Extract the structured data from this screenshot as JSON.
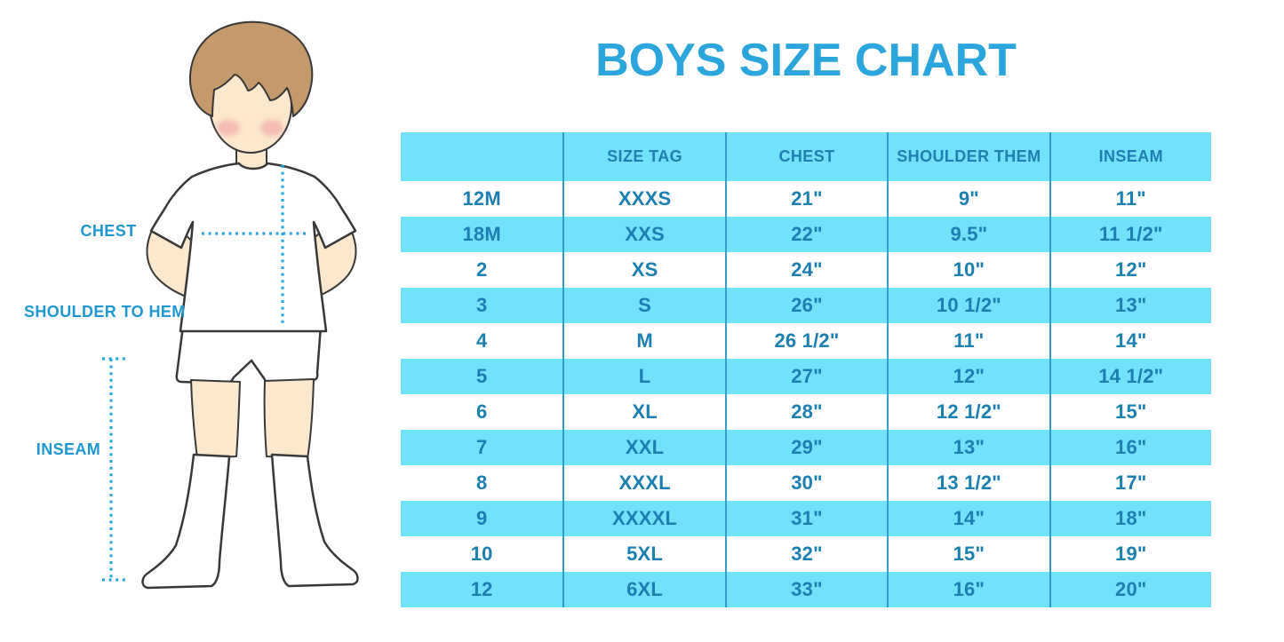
{
  "title": "BOYS SIZE CHART",
  "illustration": {
    "labels": {
      "chest": "CHEST",
      "shoulder_to_hem": "SHOULDER TO HEM",
      "inseam": "INSEAM"
    }
  },
  "colors": {
    "title_blue": "#2BA6DC",
    "band_blue": "#72E2FA",
    "table_text_blue": "#1C7FB2",
    "label_blue": "#1E97D2",
    "divider_blue": "#2E9DCB",
    "dotted_line_blue": "#29A8E0",
    "hair_brown": "#C49A6C",
    "skin": "#FBE8CD"
  },
  "chart_data": {
    "type": "table",
    "title": "BOYS SIZE CHART",
    "columns": [
      "",
      "SIZE TAG",
      "CHEST",
      "SHOULDER THEM",
      "INSEAM"
    ],
    "rows": [
      [
        "12M",
        "XXXS",
        "21\"",
        "9\"",
        "11\""
      ],
      [
        "18M",
        "XXS",
        "22\"",
        "9.5\"",
        "11 1/2\""
      ],
      [
        "2",
        "XS",
        "24\"",
        "10\"",
        "12\""
      ],
      [
        "3",
        "S",
        "26\"",
        "10 1/2\"",
        "13\""
      ],
      [
        "4",
        "M",
        "26 1/2\"",
        "11\"",
        "14\""
      ],
      [
        "5",
        "L",
        "27\"",
        "12\"",
        "14 1/2\""
      ],
      [
        "6",
        "XL",
        "28\"",
        "12 1/2\"",
        "15\""
      ],
      [
        "7",
        "XXL",
        "29\"",
        "13\"",
        "16\""
      ],
      [
        "8",
        "XXXL",
        "30\"",
        "13 1/2\"",
        "17\""
      ],
      [
        "9",
        "XXXXL",
        "31\"",
        "14\"",
        "18\""
      ],
      [
        "10",
        "5XL",
        "32\"",
        "15\"",
        "19\""
      ],
      [
        "12",
        "6XL",
        "33\"",
        "16\"",
        "20\""
      ]
    ],
    "layout": {
      "zebra_striping": true,
      "band_rows": [
        "header",
        "18M",
        "3",
        "5",
        "7",
        "9",
        "12"
      ]
    }
  }
}
